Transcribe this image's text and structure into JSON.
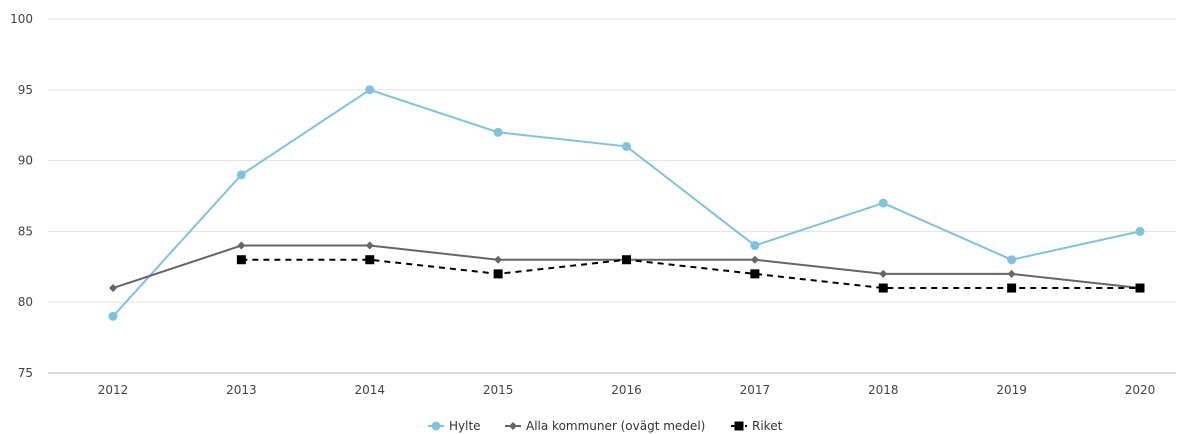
{
  "chart_data": {
    "type": "line",
    "x": [
      "2012",
      "2013",
      "2014",
      "2015",
      "2016",
      "2017",
      "2018",
      "2019",
      "2020"
    ],
    "ylim": [
      75,
      100
    ],
    "yticks": [
      75,
      80,
      85,
      90,
      95,
      100
    ],
    "grid": true,
    "legend_position": "bottom-center",
    "series": [
      {
        "name": "Hylte",
        "color": "#7ec3e0",
        "marker": "circle",
        "dash": false,
        "values": [
          79,
          89,
          95,
          92,
          91,
          84,
          87,
          83,
          85
        ]
      },
      {
        "name": "Alla kommuner (ovägt medel)",
        "color": "#666666",
        "marker": "diamond",
        "dash": false,
        "values": [
          81,
          84,
          84,
          83,
          83,
          83,
          82,
          82,
          81
        ]
      },
      {
        "name": "Riket",
        "color": "#000000",
        "marker": "square",
        "dash": true,
        "values": [
          null,
          83,
          83,
          82,
          83,
          82,
          81,
          81,
          81
        ]
      }
    ]
  }
}
